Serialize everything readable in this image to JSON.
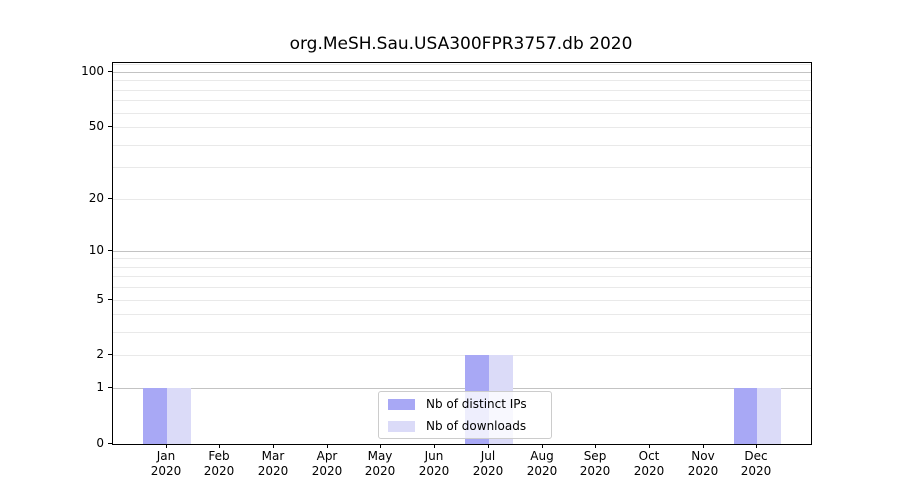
{
  "chart_data": {
    "type": "bar",
    "title": "org.MeSH.Sau.USA300FPR3757.db 2020",
    "year": "2020",
    "categories": [
      "Jan",
      "Feb",
      "Mar",
      "Apr",
      "May",
      "Jun",
      "Jul",
      "Aug",
      "Sep",
      "Oct",
      "Nov",
      "Dec"
    ],
    "series": [
      {
        "name": "Nb of distinct IPs",
        "color": "#a8a8f5",
        "values": [
          1,
          0,
          0,
          0,
          0,
          0,
          2,
          0,
          0,
          0,
          0,
          1
        ]
      },
      {
        "name": "Nb of downloads",
        "color": "#dbdbf8",
        "values": [
          1,
          0,
          0,
          0,
          0,
          0,
          2,
          0,
          0,
          0,
          0,
          1
        ]
      }
    ],
    "yscale": "log1p",
    "ylim": [
      0,
      112
    ],
    "y_ticks": [
      0,
      1,
      2,
      5,
      10,
      20,
      50,
      100
    ],
    "gridlines": {
      "major_values": [
        1,
        10,
        100
      ],
      "minor_values": [
        2,
        3,
        4,
        5,
        6,
        7,
        8,
        9,
        20,
        30,
        40,
        50,
        60,
        70,
        80,
        90,
        110
      ],
      "major_color": "#c3c3c3",
      "minor_color": "#e9e9e9"
    },
    "legend": {
      "position": "lower center"
    },
    "axis_color": "#000000",
    "text_color": "#000000",
    "background": "#ffffff"
  }
}
